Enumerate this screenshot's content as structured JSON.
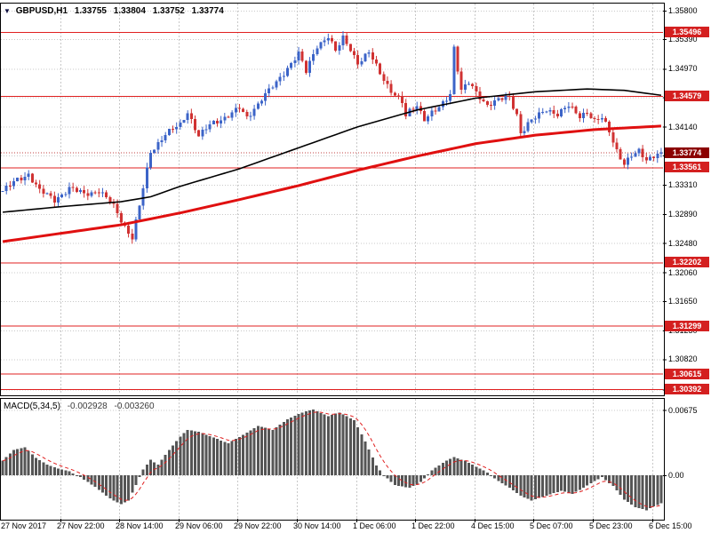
{
  "window": {
    "symbol_period": "GBPUSD,H1",
    "collapse_icon": "▼",
    "ohlc": {
      "open": "1.33755",
      "high": "1.33804",
      "low": "1.33752",
      "close": "1.33774"
    }
  },
  "colors": {
    "background": "#ffffff",
    "grid": "#c8c8c8",
    "frame": "#000000",
    "candle_up": "#3c64c8",
    "candle_down": "#d03232",
    "ma_fast": "#000000",
    "ma_slow": "#e01010",
    "level_line": "#e02020",
    "level_label_bg": "#d42020",
    "price_label_bg": "#8b0000",
    "bid_line": "#c04040",
    "macd_bar": "#555555",
    "macd_signal": "#e02020",
    "axis_text": "#000000"
  },
  "price_axis": {
    "ticks": [
      1.358,
      1.3539,
      1.3497,
      1.3456,
      1.3414,
      1.3373,
      1.3331,
      1.3289,
      1.3248,
      1.3206,
      1.3165,
      1.3123,
      1.3082,
      1.3039
    ]
  },
  "macd_panel": {
    "label": "MACD(5,34,5)",
    "macd_value": "-0.002928",
    "signal_value": "-0.003260",
    "ticks": [
      0.00675,
      0
    ]
  },
  "time_axis": {
    "labels": [
      "27 Nov 2017",
      "27 Nov 22:00",
      "28 Nov 14:00",
      "29 Nov 06:00",
      "29 Nov 22:00",
      "30 Nov 14:00",
      "1 Dec 06:00",
      "1 Dec 22:00",
      "4 Dec 15:00",
      "5 Dec 07:00",
      "5 Dec 23:00",
      "6 Dec 15:00"
    ]
  },
  "chart_data": [
    {
      "type": "candlestick",
      "title": "GBPUSD,H1",
      "ylim": [
        1.3033,
        1.359
      ],
      "n_candles": 179,
      "candles_per_gridline": 16,
      "x_labels": [
        "27 Nov 2017",
        "27 Nov 22:00",
        "28 Nov 14:00",
        "29 Nov 06:00",
        "29 Nov 22:00",
        "30 Nov 14:00",
        "1 Dec 06:00",
        "1 Dec 22:00",
        "4 Dec 15:00",
        "5 Dec 07:00",
        "5 Dec 23:00",
        "6 Dec 15:00"
      ],
      "close_path_anchors": [
        [
          0,
          1.3322
        ],
        [
          4,
          1.3338
        ],
        [
          7,
          1.3347
        ],
        [
          10,
          1.3322
        ],
        [
          14,
          1.331
        ],
        [
          18,
          1.3326
        ],
        [
          22,
          1.3318
        ],
        [
          26,
          1.3323
        ],
        [
          30,
          1.33
        ],
        [
          33,
          1.3272
        ],
        [
          35,
          1.3256
        ],
        [
          37,
          1.33
        ],
        [
          40,
          1.3378
        ],
        [
          44,
          1.3404
        ],
        [
          48,
          1.3416
        ],
        [
          50,
          1.3436
        ],
        [
          53,
          1.3401
        ],
        [
          56,
          1.3416
        ],
        [
          60,
          1.3428
        ],
        [
          64,
          1.344
        ],
        [
          66,
          1.3426
        ],
        [
          70,
          1.3455
        ],
        [
          74,
          1.3476
        ],
        [
          78,
          1.3506
        ],
        [
          80,
          1.3519
        ],
        [
          82,
          1.3492
        ],
        [
          85,
          1.353
        ],
        [
          88,
          1.3544
        ],
        [
          90,
          1.3521
        ],
        [
          92,
          1.354
        ],
        [
          94,
          1.3526
        ],
        [
          96,
          1.3506
        ],
        [
          99,
          1.3519
        ],
        [
          102,
          1.3491
        ],
        [
          105,
          1.3466
        ],
        [
          108,
          1.3448
        ],
        [
          109,
          1.3428
        ],
        [
          110,
          1.3436
        ],
        [
          112,
          1.3446
        ],
        [
          114,
          1.3426
        ],
        [
          118,
          1.344
        ],
        [
          121,
          1.3462
        ],
        [
          122,
          1.3528
        ],
        [
          124,
          1.3466
        ],
        [
          126,
          1.3476
        ],
        [
          128,
          1.3462
        ],
        [
          131,
          1.3446
        ],
        [
          134,
          1.3452
        ],
        [
          137,
          1.3456
        ],
        [
          139,
          1.3432
        ],
        [
          140,
          1.3406
        ],
        [
          142,
          1.3418
        ],
        [
          144,
          1.3426
        ],
        [
          147,
          1.344
        ],
        [
          150,
          1.3432
        ],
        [
          153,
          1.3443
        ],
        [
          156,
          1.343
        ],
        [
          158,
          1.3436
        ],
        [
          160,
          1.3421
        ],
        [
          162,
          1.3426
        ],
        [
          164,
          1.3408
        ],
        [
          166,
          1.3381
        ],
        [
          168,
          1.3361
        ],
        [
          170,
          1.3371
        ],
        [
          172,
          1.3379
        ],
        [
          174,
          1.3368
        ],
        [
          176,
          1.3373
        ],
        [
          178,
          1.33774
        ]
      ],
      "ma_black_anchors": [
        [
          0,
          1.3292
        ],
        [
          16,
          1.33
        ],
        [
          32,
          1.3307
        ],
        [
          40,
          1.3314
        ],
        [
          48,
          1.3329
        ],
        [
          64,
          1.3354
        ],
        [
          80,
          1.3384
        ],
        [
          96,
          1.3414
        ],
        [
          112,
          1.3438
        ],
        [
          128,
          1.3455
        ],
        [
          144,
          1.3464
        ],
        [
          158,
          1.3468
        ],
        [
          168,
          1.3466
        ],
        [
          178,
          1.3459
        ]
      ],
      "ma_red_anchors": [
        [
          0,
          1.325
        ],
        [
          16,
          1.3262
        ],
        [
          32,
          1.3274
        ],
        [
          48,
          1.3291
        ],
        [
          64,
          1.331
        ],
        [
          80,
          1.333
        ],
        [
          96,
          1.3352
        ],
        [
          112,
          1.3372
        ],
        [
          128,
          1.339
        ],
        [
          144,
          1.3402
        ],
        [
          160,
          1.341
        ],
        [
          178,
          1.3415
        ]
      ],
      "levels": [
        1.35496,
        1.34579,
        1.33561,
        1.32202,
        1.31299,
        1.30615,
        1.30392
      ],
      "last_price": 1.33774
    },
    {
      "type": "bar",
      "title": "MACD(5,34,5)",
      "current_macd": -0.002928,
      "current_signal": -0.00326,
      "ylim": [
        -0.0044,
        0.0079
      ],
      "anchors": [
        [
          0,
          0.0015
        ],
        [
          3,
          0.0026
        ],
        [
          6,
          0.0029
        ],
        [
          9,
          0.0018
        ],
        [
          12,
          0.0011
        ],
        [
          15,
          0.0007
        ],
        [
          18,
          0.0004
        ],
        [
          21,
          -0.0002
        ],
        [
          25,
          -0.0012
        ],
        [
          29,
          -0.0024
        ],
        [
          32,
          -0.003
        ],
        [
          34,
          -0.0026
        ],
        [
          36,
          -0.001
        ],
        [
          38,
          0.0006
        ],
        [
          40,
          0.0016
        ],
        [
          42,
          0.0011
        ],
        [
          45,
          0.0026
        ],
        [
          48,
          0.004
        ],
        [
          50,
          0.0047
        ],
        [
          53,
          0.0045
        ],
        [
          57,
          0.0039
        ],
        [
          61,
          0.0033
        ],
        [
          65,
          0.0042
        ],
        [
          69,
          0.0051
        ],
        [
          73,
          0.0047
        ],
        [
          77,
          0.0058
        ],
        [
          81,
          0.0065
        ],
        [
          84,
          0.0068
        ],
        [
          88,
          0.0061
        ],
        [
          91,
          0.0065
        ],
        [
          95,
          0.0057
        ],
        [
          98,
          0.0035
        ],
        [
          101,
          0.001
        ],
        [
          103,
          0.0
        ],
        [
          106,
          -0.001
        ],
        [
          110,
          -0.0013
        ],
        [
          113,
          -0.0007
        ],
        [
          116,
          0.0005
        ],
        [
          119,
          0.0013
        ],
        [
          122,
          0.0019
        ],
        [
          125,
          0.0015
        ],
        [
          128,
          0.0009
        ],
        [
          131,
          0.0003
        ],
        [
          134,
          -0.0006
        ],
        [
          137,
          -0.0013
        ],
        [
          140,
          -0.0021
        ],
        [
          143,
          -0.0026
        ],
        [
          147,
          -0.0021
        ],
        [
          151,
          -0.0016
        ],
        [
          154,
          -0.0019
        ],
        [
          157,
          -0.0013
        ],
        [
          160,
          -0.0006
        ],
        [
          162,
          -0.0002
        ],
        [
          165,
          -0.0011
        ],
        [
          168,
          -0.0025
        ],
        [
          171,
          -0.0033
        ],
        [
          174,
          -0.0036
        ],
        [
          176,
          -0.0032
        ],
        [
          178,
          -0.0029
        ]
      ]
    }
  ]
}
